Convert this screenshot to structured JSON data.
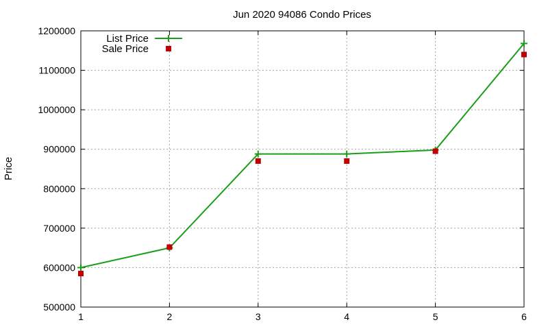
{
  "chart_data": {
    "type": "line",
    "title": "Jun 2020 94086 Condo Prices",
    "xlabel": "",
    "ylabel": "Price",
    "x": [
      1,
      2,
      3,
      4,
      5,
      6
    ],
    "xlim": [
      1,
      6
    ],
    "ylim": [
      500000,
      1200000
    ],
    "xticks": [
      1,
      2,
      3,
      4,
      5,
      6
    ],
    "yticks": [
      500000,
      600000,
      700000,
      800000,
      900000,
      1000000,
      1100000,
      1200000
    ],
    "grid": true,
    "legend_position": "top-left",
    "series": [
      {
        "name": "List Price",
        "style": "line-with-plus-markers",
        "color": "#1a9e1a",
        "values": [
          600000,
          650000,
          888000,
          888000,
          898000,
          1168000
        ]
      },
      {
        "name": "Sale Price",
        "style": "square-markers",
        "color": "#c00000",
        "values": [
          585000,
          652000,
          870000,
          870000,
          895000,
          1140000
        ]
      }
    ]
  }
}
